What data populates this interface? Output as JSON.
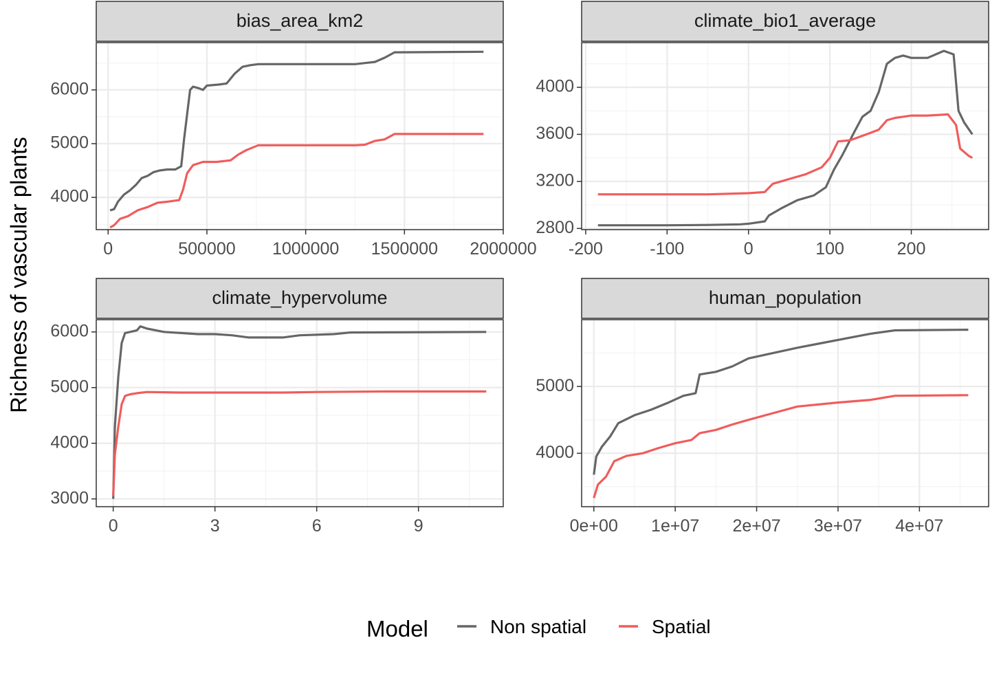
{
  "figure": {
    "ylabel": "Richness of vascular plants",
    "legend": {
      "title": "Model",
      "position": "bottom"
    }
  },
  "colors": {
    "non_spatial": "#666666",
    "spatial": "#f05c5c",
    "strip_bg": "#d9d9d9",
    "grid_major": "#ebebeb",
    "grid_minor": "#f4f4f4"
  },
  "chart_data": [
    {
      "type": "line",
      "title": "bias_area_km2",
      "xlim": [
        -60000,
        2000000
      ],
      "ylim": [
        3400,
        6880
      ],
      "x_ticks": [
        0,
        500000,
        1000000,
        1500000,
        2000000
      ],
      "x_tick_labels": [
        "0",
        "500000",
        "1000000",
        "1500000",
        "2000000"
      ],
      "y_ticks": [
        4000,
        5000,
        6000
      ],
      "y_tick_labels": [
        "4000",
        "5000",
        "6000"
      ],
      "series": [
        {
          "name": "Non spatial",
          "points": [
            [
              10000,
              3760
            ],
            [
              30000,
              3780
            ],
            [
              50000,
              3920
            ],
            [
              80000,
              4050
            ],
            [
              110000,
              4130
            ],
            [
              140000,
              4230
            ],
            [
              170000,
              4360
            ],
            [
              200000,
              4400
            ],
            [
              230000,
              4470
            ],
            [
              260000,
              4500
            ],
            [
              300000,
              4520
            ],
            [
              340000,
              4520
            ],
            [
              370000,
              4580
            ],
            [
              385000,
              5100
            ],
            [
              400000,
              5550
            ],
            [
              415000,
              6000
            ],
            [
              430000,
              6060
            ],
            [
              460000,
              6030
            ],
            [
              480000,
              6000
            ],
            [
              500000,
              6080
            ],
            [
              560000,
              6100
            ],
            [
              600000,
              6120
            ],
            [
              640000,
              6300
            ],
            [
              680000,
              6430
            ],
            [
              720000,
              6460
            ],
            [
              760000,
              6480
            ],
            [
              800000,
              6480
            ],
            [
              1000000,
              6480
            ],
            [
              1250000,
              6480
            ],
            [
              1300000,
              6500
            ],
            [
              1350000,
              6520
            ],
            [
              1400000,
              6600
            ],
            [
              1450000,
              6700
            ],
            [
              1900000,
              6710
            ]
          ]
        },
        {
          "name": "Spatial",
          "points": [
            [
              10000,
              3440
            ],
            [
              30000,
              3480
            ],
            [
              60000,
              3600
            ],
            [
              100000,
              3650
            ],
            [
              150000,
              3760
            ],
            [
              200000,
              3820
            ],
            [
              250000,
              3900
            ],
            [
              300000,
              3920
            ],
            [
              360000,
              3950
            ],
            [
              380000,
              4150
            ],
            [
              400000,
              4450
            ],
            [
              430000,
              4600
            ],
            [
              480000,
              4660
            ],
            [
              550000,
              4660
            ],
            [
              620000,
              4690
            ],
            [
              660000,
              4800
            ],
            [
              700000,
              4880
            ],
            [
              760000,
              4970
            ],
            [
              1000000,
              4970
            ],
            [
              1250000,
              4970
            ],
            [
              1300000,
              4980
            ],
            [
              1350000,
              5050
            ],
            [
              1400000,
              5080
            ],
            [
              1450000,
              5180
            ],
            [
              1900000,
              5180
            ]
          ]
        }
      ]
    },
    {
      "type": "line",
      "title": "climate_bio1_average",
      "xlim": [
        -205,
        295
      ],
      "ylim": [
        2790,
        4380
      ],
      "x_ticks": [
        -200,
        -100,
        0,
        100,
        200
      ],
      "x_tick_labels": [
        "-200",
        "-100",
        "0",
        "100",
        "200"
      ],
      "y_ticks": [
        2800,
        3200,
        3600,
        4000
      ],
      "y_tick_labels": [
        "2800",
        "3200",
        "3600",
        "4000"
      ],
      "series": [
        {
          "name": "Non spatial",
          "points": [
            [
              -185,
              2827
            ],
            [
              -100,
              2827
            ],
            [
              -50,
              2830
            ],
            [
              -10,
              2835
            ],
            [
              0,
              2840
            ],
            [
              20,
              2860
            ],
            [
              25,
              2910
            ],
            [
              40,
              2970
            ],
            [
              60,
              3040
            ],
            [
              80,
              3080
            ],
            [
              95,
              3150
            ],
            [
              105,
              3300
            ],
            [
              115,
              3420
            ],
            [
              130,
              3620
            ],
            [
              140,
              3750
            ],
            [
              150,
              3800
            ],
            [
              160,
              3960
            ],
            [
              170,
              4200
            ],
            [
              180,
              4250
            ],
            [
              190,
              4270
            ],
            [
              200,
              4250
            ],
            [
              220,
              4250
            ],
            [
              240,
              4310
            ],
            [
              252,
              4280
            ],
            [
              258,
              3800
            ],
            [
              265,
              3700
            ],
            [
              275,
              3600
            ]
          ]
        },
        {
          "name": "Spatial",
          "points": [
            [
              -185,
              3090
            ],
            [
              -50,
              3090
            ],
            [
              0,
              3100
            ],
            [
              20,
              3110
            ],
            [
              30,
              3180
            ],
            [
              50,
              3220
            ],
            [
              70,
              3260
            ],
            [
              90,
              3320
            ],
            [
              100,
              3400
            ],
            [
              110,
              3540
            ],
            [
              125,
              3550
            ],
            [
              145,
              3600
            ],
            [
              160,
              3640
            ],
            [
              170,
              3720
            ],
            [
              180,
              3740
            ],
            [
              190,
              3750
            ],
            [
              200,
              3760
            ],
            [
              220,
              3760
            ],
            [
              245,
              3770
            ],
            [
              255,
              3680
            ],
            [
              260,
              3480
            ],
            [
              270,
              3420
            ],
            [
              275,
              3400
            ]
          ]
        }
      ]
    },
    {
      "type": "line",
      "title": "climate_hypervolume",
      "xlim": [
        -0.5,
        11.5
      ],
      "ylim": [
        2860,
        6220
      ],
      "x_ticks": [
        0,
        3,
        6,
        9
      ],
      "x_tick_labels": [
        "0",
        "3",
        "6",
        "9"
      ],
      "y_ticks": [
        3000,
        4000,
        5000,
        6000
      ],
      "y_tick_labels": [
        "3000",
        "4000",
        "5000",
        "6000"
      ],
      "series": [
        {
          "name": "Non spatial",
          "points": [
            [
              0,
              3000
            ],
            [
              0.05,
              4300
            ],
            [
              0.15,
              5200
            ],
            [
              0.25,
              5800
            ],
            [
              0.35,
              5980
            ],
            [
              0.5,
              6000
            ],
            [
              0.7,
              6030
            ],
            [
              0.8,
              6100
            ],
            [
              1,
              6060
            ],
            [
              1.5,
              6000
            ],
            [
              2,
              5980
            ],
            [
              2.5,
              5960
            ],
            [
              3,
              5960
            ],
            [
              3.5,
              5940
            ],
            [
              4,
              5900
            ],
            [
              5,
              5900
            ],
            [
              5.5,
              5940
            ],
            [
              6,
              5950
            ],
            [
              6.5,
              5960
            ],
            [
              7,
              5990
            ],
            [
              11,
              6000
            ]
          ]
        },
        {
          "name": "Spatial",
          "points": [
            [
              0,
              3050
            ],
            [
              0.05,
              3800
            ],
            [
              0.15,
              4300
            ],
            [
              0.25,
              4700
            ],
            [
              0.35,
              4850
            ],
            [
              0.5,
              4880
            ],
            [
              0.7,
              4900
            ],
            [
              1,
              4920
            ],
            [
              2,
              4910
            ],
            [
              3,
              4910
            ],
            [
              5,
              4910
            ],
            [
              6,
              4920
            ],
            [
              8,
              4930
            ],
            [
              11,
              4930
            ]
          ]
        }
      ]
    },
    {
      "type": "line",
      "title": "human_population",
      "xlim": [
        -1500000,
        48500000
      ],
      "ylim": [
        3200,
        6000
      ],
      "x_ticks": [
        0,
        10000000,
        20000000,
        30000000,
        40000000
      ],
      "x_tick_labels": [
        "0e+00",
        "1e+07",
        "2e+07",
        "3e+07",
        "4e+07"
      ],
      "y_ticks": [
        4000,
        5000
      ],
      "y_tick_labels": [
        "4000",
        "5000"
      ],
      "series": [
        {
          "name": "Non spatial",
          "points": [
            [
              0,
              3680
            ],
            [
              300000,
              3950
            ],
            [
              1000000,
              4100
            ],
            [
              2000000,
              4250
            ],
            [
              3000000,
              4450
            ],
            [
              5000000,
              4570
            ],
            [
              7000000,
              4650
            ],
            [
              9000000,
              4750
            ],
            [
              11000000,
              4860
            ],
            [
              12500000,
              4900
            ],
            [
              13000000,
              5180
            ],
            [
              15000000,
              5220
            ],
            [
              17000000,
              5300
            ],
            [
              19000000,
              5420
            ],
            [
              22000000,
              5500
            ],
            [
              25000000,
              5580
            ],
            [
              28000000,
              5650
            ],
            [
              31000000,
              5720
            ],
            [
              34000000,
              5790
            ],
            [
              37000000,
              5840
            ],
            [
              46000000,
              5850
            ]
          ]
        },
        {
          "name": "Spatial",
          "points": [
            [
              0,
              3330
            ],
            [
              500000,
              3530
            ],
            [
              1500000,
              3650
            ],
            [
              2500000,
              3880
            ],
            [
              4000000,
              3960
            ],
            [
              6000000,
              4000
            ],
            [
              8000000,
              4080
            ],
            [
              10000000,
              4150
            ],
            [
              12000000,
              4200
            ],
            [
              13000000,
              4300
            ],
            [
              15000000,
              4350
            ],
            [
              17000000,
              4430
            ],
            [
              19000000,
              4500
            ],
            [
              22000000,
              4600
            ],
            [
              25000000,
              4700
            ],
            [
              30000000,
              4760
            ],
            [
              34000000,
              4800
            ],
            [
              37000000,
              4860
            ],
            [
              46000000,
              4870
            ]
          ]
        }
      ]
    }
  ]
}
